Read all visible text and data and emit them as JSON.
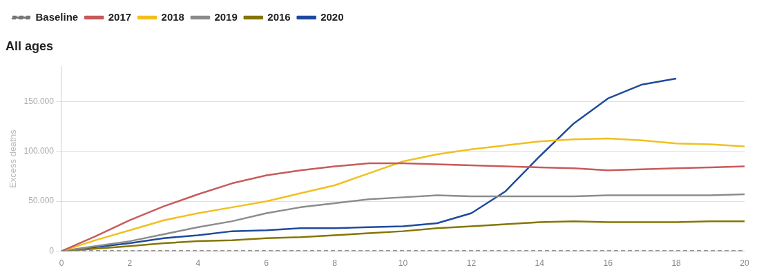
{
  "chart_data": {
    "type": "line",
    "title": "All ages",
    "ylabel": "Excess deaths",
    "x": [
      0,
      1,
      2,
      3,
      4,
      5,
      6,
      7,
      8,
      9,
      10,
      11,
      12,
      13,
      14,
      15,
      16,
      17,
      18,
      19,
      20
    ],
    "series": [
      {
        "name": "Baseline",
        "color": "#777777",
        "line_style": "dashed",
        "values": [
          0,
          0,
          0,
          0,
          0,
          0,
          0,
          0,
          0,
          0,
          0,
          0,
          0,
          0,
          0,
          0,
          0,
          0,
          0,
          0,
          0
        ]
      },
      {
        "name": "2017",
        "color": "#c85a5a",
        "values": [
          0,
          15000,
          31000,
          45000,
          57000,
          68000,
          76000,
          81000,
          85000,
          88000,
          88000,
          87000,
          86000,
          85000,
          84000,
          83000,
          81000,
          82000,
          83000,
          84000,
          85000
        ]
      },
      {
        "name": "2018",
        "color": "#f0c020",
        "values": [
          0,
          11000,
          21000,
          31000,
          38000,
          44000,
          50000,
          58000,
          66000,
          78000,
          90000,
          97000,
          102000,
          106000,
          110000,
          112000,
          113000,
          111000,
          108000,
          107000,
          105000
        ]
      },
      {
        "name": "2019",
        "color": "#8c8c8c",
        "values": [
          0,
          5000,
          10000,
          17000,
          24000,
          30000,
          38000,
          44000,
          48000,
          52000,
          54000,
          56000,
          55000,
          55000,
          55000,
          55000,
          56000,
          56000,
          56000,
          56000,
          57000
        ]
      },
      {
        "name": "2016",
        "color": "#857500",
        "values": [
          0,
          2500,
          5000,
          8000,
          10000,
          11000,
          13000,
          14000,
          16000,
          18000,
          20000,
          23000,
          25000,
          27000,
          29000,
          30000,
          29000,
          29000,
          29000,
          30000,
          30000
        ]
      },
      {
        "name": "2020",
        "color": "#1f4a9e",
        "values": [
          0,
          4000,
          8000,
          13000,
          16000,
          20000,
          21000,
          23000,
          23000,
          24000,
          25000,
          28000,
          38000,
          60000,
          95000,
          128000,
          153000,
          167000,
          173000,
          null,
          null
        ]
      }
    ],
    "xlim": [
      0,
      20
    ],
    "xticks": [
      0,
      2,
      4,
      6,
      8,
      10,
      12,
      14,
      16,
      18,
      20
    ],
    "ylim": [
      0,
      185000
    ],
    "yticks": [
      0,
      {
        "value": 50000,
        "label": "50.000"
      },
      {
        "value": 100000,
        "label": "100.000"
      },
      {
        "value": 150000,
        "label": "150.000"
      }
    ],
    "grid": "y",
    "legend": "top left",
    "marker": "none",
    "line_style": "solid"
  }
}
